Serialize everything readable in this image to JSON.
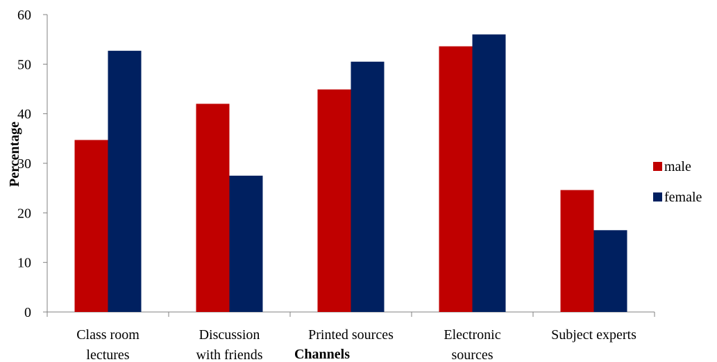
{
  "chart_data": {
    "type": "bar",
    "title": "",
    "xlabel": "Channels",
    "ylabel": "Percentage",
    "ylim": [
      0,
      60
    ],
    "yticks": [
      0,
      10,
      20,
      30,
      40,
      50,
      60
    ],
    "grid": false,
    "legend_position": "right",
    "categories": [
      [
        "Class room",
        "lectures"
      ],
      [
        "Discussion",
        "with friends"
      ],
      [
        "Printed sources"
      ],
      [
        "Electronic",
        "sources"
      ],
      [
        "Subject experts"
      ]
    ],
    "series": [
      {
        "name": "male",
        "color": "#c00000",
        "values": [
          34.7,
          42,
          44.9,
          53.6,
          24.6
        ]
      },
      {
        "name": "female",
        "color": "#002060",
        "values": [
          52.7,
          27.5,
          50.5,
          56,
          16.5
        ]
      }
    ]
  }
}
